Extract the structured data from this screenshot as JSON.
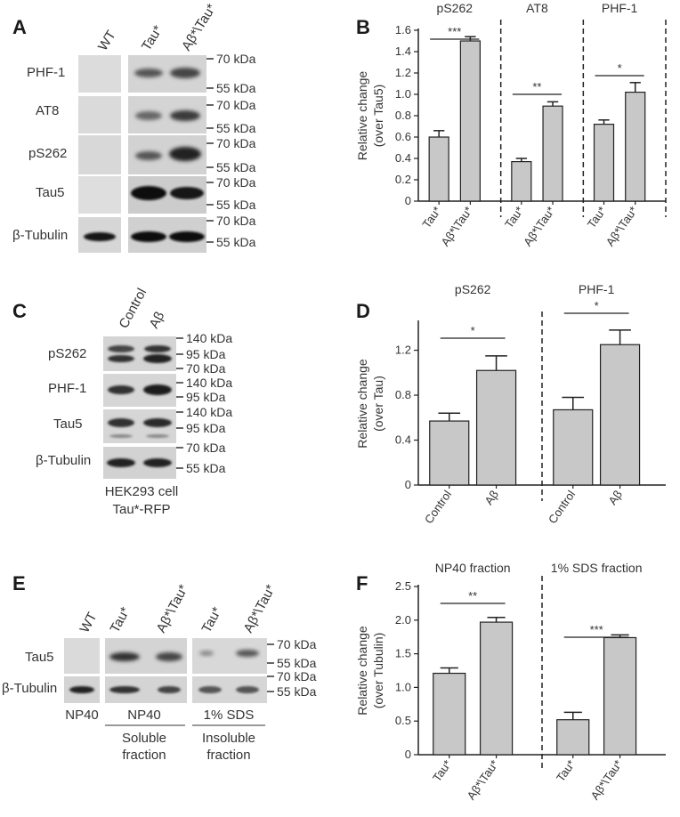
{
  "panels": {
    "A": "A",
    "B": "B",
    "C": "C",
    "D": "D",
    "E": "E",
    "F": "F"
  },
  "blot_a": {
    "lanes": [
      "WT",
      "Tau*",
      "Aβ*\\Tau*"
    ],
    "rows": [
      "PHF-1",
      "AT8",
      "pS262",
      "Tau5",
      "β-Tubulin"
    ],
    "markers": [
      "70 kDa",
      "55 kDa"
    ]
  },
  "blot_c": {
    "lanes": [
      "Control",
      "Aβ"
    ],
    "rows": [
      "pS262",
      "PHF-1",
      "Tau5",
      "β-Tubulin"
    ],
    "markers": [
      [
        "140 kDa",
        "95 kDa",
        "70 kDa"
      ],
      [
        "140 kDa",
        "95 kDa"
      ],
      [
        "140 kDa",
        "95 kDa"
      ],
      [
        "70 kDa",
        "55 kDa"
      ]
    ],
    "caption": [
      "HEK293 cell",
      "Tau*-RFP"
    ]
  },
  "blot_e": {
    "lanes": [
      "WT",
      "Tau*",
      "Aβ*\\Tau*",
      "Tau*",
      "Aβ*\\Tau*"
    ],
    "rows": [
      "Tau5",
      "β-Tubulin"
    ],
    "markers": [
      "70 kDa",
      "55 kDa",
      "70 kDa",
      "55 kDa"
    ],
    "bottom": [
      "NP40",
      "NP40",
      "1% SDS"
    ],
    "fractions": [
      [
        "Soluble",
        "fraction"
      ],
      [
        "Insoluble",
        "fraction"
      ]
    ]
  },
  "chart_data": [
    {
      "id": "B",
      "type": "bar",
      "ylabel": [
        "Relative change",
        "(over Tau5)"
      ],
      "ylim": [
        0,
        1.6
      ],
      "yticks": [
        "0",
        "0.2",
        "0.4",
        "0.6",
        "0.8",
        "1.0",
        "1.2",
        "1.4",
        "1.6"
      ],
      "groups": [
        {
          "title": "pS262",
          "categories": [
            "Tau*",
            "Aβ*\\Tau*"
          ],
          "values": [
            0.6,
            1.5
          ],
          "errors": [
            0.06,
            0.04
          ],
          "sig": "***"
        },
        {
          "title": "AT8",
          "categories": [
            "Tau*",
            "Aβ*\\Tau*"
          ],
          "values": [
            0.37,
            0.89
          ],
          "errors": [
            0.03,
            0.04
          ],
          "sig": "**"
        },
        {
          "title": "PHF-1",
          "categories": [
            "Tau*",
            "Aβ*\\Tau*"
          ],
          "values": [
            0.72,
            1.02
          ],
          "errors": [
            0.04,
            0.09
          ],
          "sig": "*"
        }
      ],
      "grid": false
    },
    {
      "id": "D",
      "type": "bar",
      "ylabel": [
        "Relative change",
        "(over Tau)"
      ],
      "ylim": [
        0,
        1.45
      ],
      "yticks": [
        "0",
        "0.4",
        "0.8",
        "1.2"
      ],
      "groups": [
        {
          "title": "pS262",
          "categories": [
            "Control",
            "Aβ"
          ],
          "values": [
            0.57,
            1.02
          ],
          "errors": [
            0.07,
            0.13
          ],
          "sig": "*"
        },
        {
          "title": "PHF-1",
          "categories": [
            "Control",
            "Aβ"
          ],
          "values": [
            0.67,
            1.25
          ],
          "errors": [
            0.11,
            0.13
          ],
          "sig": "*"
        }
      ],
      "grid": false
    },
    {
      "id": "F",
      "type": "bar",
      "ylabel": [
        "Relative change",
        "(over Tubulin)"
      ],
      "ylim": [
        0,
        2.5
      ],
      "yticks": [
        "0",
        "0.5",
        "1.0",
        "1.5",
        "2.0",
        "2.5"
      ],
      "groups": [
        {
          "title": "NP40 fraction",
          "categories": [
            "Tau*",
            "Aβ*\\Tau*"
          ],
          "values": [
            1.21,
            1.97
          ],
          "errors": [
            0.08,
            0.07
          ],
          "sig": "**"
        },
        {
          "title": "1% SDS fraction",
          "categories": [
            "Tau*",
            "Aβ*\\Tau*"
          ],
          "values": [
            0.52,
            1.74
          ],
          "errors": [
            0.11,
            0.04
          ],
          "sig": "***"
        }
      ],
      "grid": false
    }
  ],
  "colors": {
    "bar": "#c8c8c8",
    "stroke": "#222222",
    "blot_bg": "#d9d9d9",
    "band": "#1e1e1e"
  }
}
